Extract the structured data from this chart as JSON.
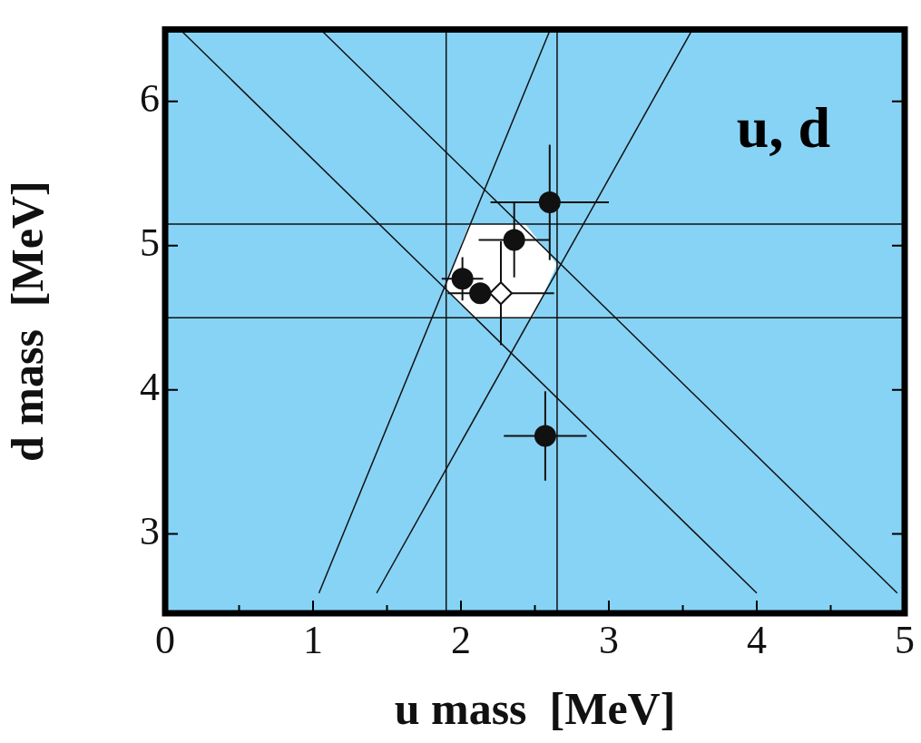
{
  "chart_data": {
    "type": "scatter",
    "xlabel": "u mass  [MeV]",
    "ylabel": "d mass  [MeV]",
    "annotations": [
      "u, d"
    ],
    "xlim": [
      0,
      5
    ],
    "xticks": [
      0,
      {
        "value": 0.5,
        "label": null
      },
      1,
      {
        "value": 1.5,
        "label": null
      },
      2,
      {
        "value": 2.5,
        "label": null
      },
      3,
      {
        "value": 3.5,
        "label": null
      },
      4,
      {
        "value": 4.5,
        "label": null
      },
      5
    ],
    "ylim": [
      2.45,
      6.5
    ],
    "yticks": [
      3,
      4,
      5,
      6
    ],
    "grid": false,
    "legend": false,
    "series": [
      {
        "type": "area",
        "color": "#ffffff",
        "x": [
          2.055,
          2.435,
          2.65,
          2.485,
          2.085,
          1.89
        ],
        "values": [
          5.15,
          5.15,
          4.87,
          4.5,
          4.5,
          4.71
        ]
      },
      {
        "type": "line",
        "color": "#111111",
        "marker": "none",
        "x": [
          1.9,
          1.9
        ],
        "values": [
          2.45,
          6.5
        ]
      },
      {
        "type": "line",
        "color": "#111111",
        "marker": "none",
        "x": [
          2.65,
          2.65
        ],
        "values": [
          2.45,
          6.5
        ]
      },
      {
        "type": "line",
        "color": "#111111",
        "marker": "none",
        "x": [
          0,
          5
        ],
        "values": [
          5.15,
          5.15
        ]
      },
      {
        "type": "line",
        "color": "#111111",
        "marker": "none",
        "x": [
          0,
          5
        ],
        "values": [
          4.5,
          4.5
        ]
      },
      {
        "type": "line",
        "color": "#111111",
        "marker": "none",
        "x": [
          0.11,
          4.0
        ],
        "values": [
          6.49,
          2.59
        ]
      },
      {
        "type": "line",
        "color": "#111111",
        "marker": "none",
        "x": [
          1.06,
          4.95
        ],
        "values": [
          6.49,
          2.59
        ]
      },
      {
        "type": "line",
        "color": "#111111",
        "marker": "none",
        "x": [
          1.04,
          2.6
        ],
        "values": [
          2.59,
          6.49
        ]
      },
      {
        "type": "line",
        "color": "#111111",
        "marker": "none",
        "x": [
          1.43,
          3.56
        ],
        "values": [
          2.59,
          6.49
        ]
      },
      {
        "type": "scatter",
        "color": "#111111",
        "marker": "circle",
        "x": [
          2.6,
          2.36,
          2.01,
          2.13,
          2.57
        ],
        "values": [
          5.3,
          5.04,
          4.77,
          4.67,
          3.68
        ],
        "errors": [
          0.4,
          0.26,
          0.15,
          null,
          0.31
        ],
        "xerrors": [
          0.4,
          0.24,
          0.14,
          null,
          0.28
        ]
      },
      {
        "type": "scatter",
        "color": "#ffffff",
        "marker": "diamond",
        "x": [
          2.27
        ],
        "values": [
          4.67
        ],
        "errors": [
          0.36
        ],
        "xerrors": [
          0.36
        ]
      }
    ]
  }
}
